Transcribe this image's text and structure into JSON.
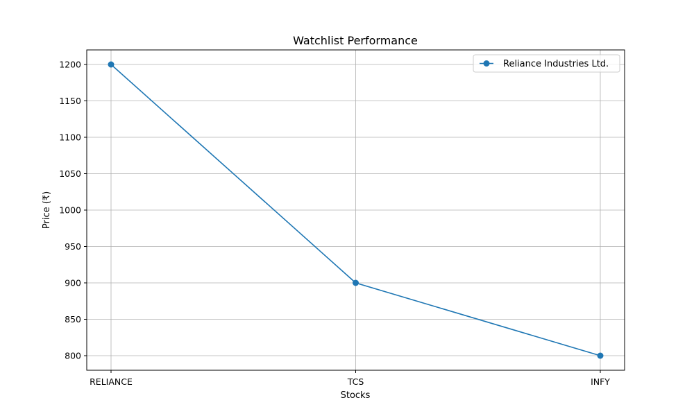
{
  "chart_data": {
    "type": "line",
    "title": "Watchlist Performance",
    "xlabel": "Stocks",
    "ylabel": "Price (₹)",
    "categories": [
      "RELIANCE",
      "TCS",
      "INFY"
    ],
    "series": [
      {
        "name": "Reliance Industries Ltd.",
        "values": [
          1200,
          900,
          800
        ],
        "color": "#1f77b4"
      }
    ],
    "yticks": [
      800,
      850,
      900,
      950,
      1000,
      1050,
      1100,
      1150,
      1200
    ],
    "ylim": [
      780,
      1220
    ],
    "grid": true,
    "legend_position": "top-right"
  }
}
